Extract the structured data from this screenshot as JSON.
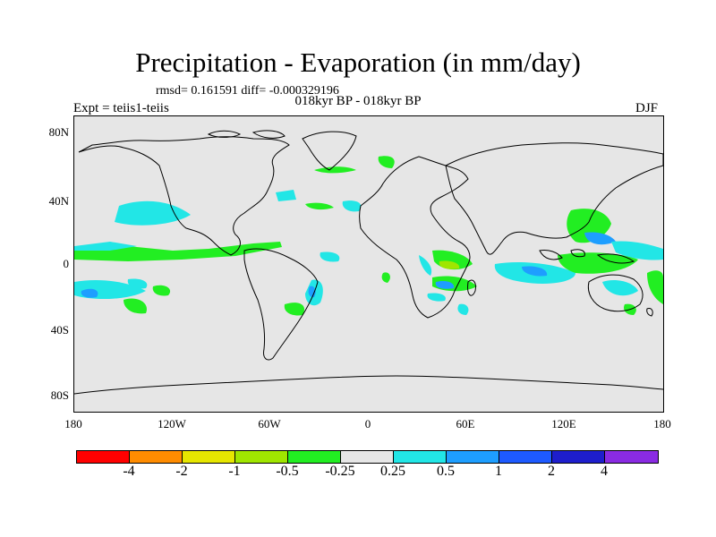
{
  "title": "Precipitation - Evaporation (in mm/day)",
  "stats": "rmsd= 0.161591 diff= -0.000329196",
  "subtitle": "018kyr BP - 018kyr BP",
  "experiment": "Expt = teiis1-teiis",
  "season": "DJF",
  "lat_labels": [
    "80N",
    "40N",
    "0",
    "40S",
    "80S"
  ],
  "lon_labels": [
    "180",
    "120W",
    "60W",
    "0",
    "60E",
    "120E",
    "180"
  ],
  "legend": {
    "labels": [
      "-4",
      "-2",
      "-1",
      "-0.5",
      "-0.25",
      "0.25",
      "0.5",
      "1",
      "2",
      "4"
    ],
    "colors": [
      "#ff0000",
      "#ff8c00",
      "#e6e600",
      "#a0e600",
      "#22ee22",
      "#e6e6e6",
      "#22e6e6",
      "#1e9eff",
      "#1e5aff",
      "#1e1ecc",
      "#8a2be2"
    ]
  },
  "colors": {
    "land_ocean": "#e6e6e6",
    "coast": "#000000"
  }
}
